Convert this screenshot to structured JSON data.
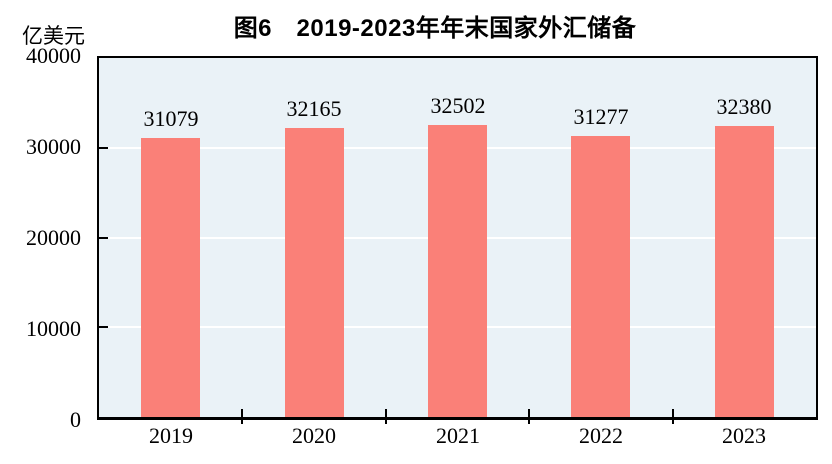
{
  "chart_data": {
    "type": "bar",
    "title": "图6　2019-2023年年末国家外汇储备",
    "unit_label": "亿美元",
    "categories": [
      "2019",
      "2020",
      "2021",
      "2022",
      "2023"
    ],
    "values": [
      31079,
      32165,
      32502,
      31277,
      32380
    ],
    "data_labels": [
      "31079",
      "32165",
      "32502",
      "31277",
      "32380"
    ],
    "ylim": [
      0,
      40000
    ],
    "yticks": [
      0,
      10000,
      20000,
      30000,
      40000
    ],
    "grid": true,
    "legend_position": "none",
    "bar_color": "#fa8078",
    "plot_background": "#eaf2f7",
    "gridline_color": "#ffffff",
    "axis_color": "#000000",
    "text_color": "#000000"
  }
}
